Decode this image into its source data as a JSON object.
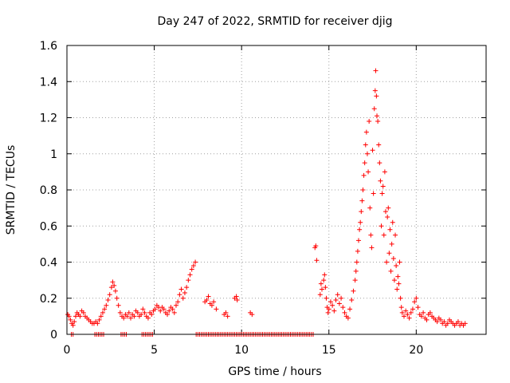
{
  "chart_data": {
    "type": "scatter",
    "title": "Day 247 of 2022, SRMTID for receiver djig",
    "xlabel": "GPS time / hours",
    "ylabel": "SRMTID / TECUs",
    "xlim": [
      0,
      24
    ],
    "ylim": [
      0,
      1.6
    ],
    "x_ticks": [
      0,
      5,
      10,
      15,
      20
    ],
    "x_tick_labels": [
      "0",
      "5",
      "10",
      "15",
      "20"
    ],
    "y_ticks": [
      0,
      0.2,
      0.4,
      0.6,
      0.8,
      1.0,
      1.2,
      1.4,
      1.6
    ],
    "y_tick_labels": [
      "0",
      "0.2",
      "0.4",
      "0.6",
      "0.8",
      "1",
      "1.2",
      "1.4",
      "1.6"
    ],
    "grid": true,
    "marker": "plus",
    "color": "#ff0000",
    "series": [
      {
        "name": "SRMTID",
        "points": [
          [
            0.05,
            0.11
          ],
          [
            0.12,
            0.1
          ],
          [
            0.2,
            0.08
          ],
          [
            0.28,
            0.06
          ],
          [
            0.35,
            0.05
          ],
          [
            0.42,
            0.07
          ],
          [
            0.5,
            0.1
          ],
          [
            0.58,
            0.12
          ],
          [
            0.66,
            0.11
          ],
          [
            0.75,
            0.1
          ],
          [
            0.85,
            0.13
          ],
          [
            0.95,
            0.12
          ],
          [
            1.05,
            0.1
          ],
          [
            1.15,
            0.09
          ],
          [
            1.25,
            0.08
          ],
          [
            1.35,
            0.07
          ],
          [
            1.45,
            0.06
          ],
          [
            1.55,
            0.06
          ],
          [
            1.65,
            0.07
          ],
          [
            1.75,
            0.06
          ],
          [
            1.85,
            0.08
          ],
          [
            1.95,
            0.1
          ],
          [
            2.05,
            0.12
          ],
          [
            2.15,
            0.14
          ],
          [
            2.25,
            0.16
          ],
          [
            2.35,
            0.19
          ],
          [
            2.45,
            0.22
          ],
          [
            2.55,
            0.26
          ],
          [
            2.62,
            0.29
          ],
          [
            2.7,
            0.27
          ],
          [
            2.78,
            0.24
          ],
          [
            2.86,
            0.2
          ],
          [
            2.95,
            0.16
          ],
          [
            3.05,
            0.12
          ],
          [
            3.15,
            0.1
          ],
          [
            3.25,
            0.09
          ],
          [
            3.35,
            0.11
          ],
          [
            3.45,
            0.1
          ],
          [
            3.55,
            0.12
          ],
          [
            3.65,
            0.09
          ],
          [
            3.75,
            0.11
          ],
          [
            3.85,
            0.1
          ],
          [
            3.95,
            0.13
          ],
          [
            4.05,
            0.12
          ],
          [
            4.15,
            0.1
          ],
          [
            4.25,
            0.11
          ],
          [
            4.35,
            0.14
          ],
          [
            4.45,
            0.12
          ],
          [
            4.55,
            0.1
          ],
          [
            4.65,
            0.09
          ],
          [
            4.75,
            0.12
          ],
          [
            4.85,
            0.11
          ],
          [
            4.95,
            0.13
          ],
          [
            5.05,
            0.14
          ],
          [
            5.15,
            0.16
          ],
          [
            5.25,
            0.15
          ],
          [
            5.35,
            0.13
          ],
          [
            5.45,
            0.15
          ],
          [
            5.55,
            0.14
          ],
          [
            5.65,
            0.12
          ],
          [
            5.75,
            0.11
          ],
          [
            5.85,
            0.13
          ],
          [
            5.95,
            0.15
          ],
          [
            6.05,
            0.14
          ],
          [
            6.15,
            0.12
          ],
          [
            6.25,
            0.16
          ],
          [
            6.35,
            0.18
          ],
          [
            6.45,
            0.22
          ],
          [
            6.55,
            0.25
          ],
          [
            6.65,
            0.2
          ],
          [
            6.75,
            0.23
          ],
          [
            6.85,
            0.26
          ],
          [
            6.95,
            0.3
          ],
          [
            7.05,
            0.33
          ],
          [
            7.15,
            0.36
          ],
          [
            7.25,
            0.38
          ],
          [
            7.35,
            0.4
          ],
          [
            7.9,
            0.18
          ],
          [
            8.0,
            0.19
          ],
          [
            8.1,
            0.21
          ],
          [
            8.2,
            0.17
          ],
          [
            8.3,
            0.16
          ],
          [
            8.4,
            0.18
          ],
          [
            8.55,
            0.14
          ],
          [
            9.0,
            0.11
          ],
          [
            9.1,
            0.12
          ],
          [
            9.2,
            0.1
          ],
          [
            9.6,
            0.2
          ],
          [
            9.7,
            0.21
          ],
          [
            9.75,
            0.19
          ],
          [
            10.5,
            0.12
          ],
          [
            10.6,
            0.11
          ],
          [
            14.2,
            0.48
          ],
          [
            14.25,
            0.49
          ],
          [
            14.3,
            0.41
          ],
          [
            14.5,
            0.22
          ],
          [
            14.55,
            0.28
          ],
          [
            14.6,
            0.25
          ],
          [
            14.7,
            0.3
          ],
          [
            14.75,
            0.33
          ],
          [
            14.8,
            0.26
          ],
          [
            14.85,
            0.2
          ],
          [
            14.9,
            0.15
          ],
          [
            14.95,
            0.12
          ],
          [
            15.0,
            0.14
          ],
          [
            15.1,
            0.18
          ],
          [
            15.2,
            0.16
          ],
          [
            15.3,
            0.13
          ],
          [
            15.4,
            0.19
          ],
          [
            15.5,
            0.22
          ],
          [
            15.6,
            0.17
          ],
          [
            15.7,
            0.2
          ],
          [
            15.8,
            0.15
          ],
          [
            15.9,
            0.12
          ],
          [
            16.0,
            0.1
          ],
          [
            16.1,
            0.09
          ],
          [
            16.2,
            0.14
          ],
          [
            16.3,
            0.19
          ],
          [
            16.4,
            0.24
          ],
          [
            16.5,
            0.3
          ],
          [
            16.55,
            0.35
          ],
          [
            16.6,
            0.4
          ],
          [
            16.65,
            0.46
          ],
          [
            16.7,
            0.52
          ],
          [
            16.75,
            0.58
          ],
          [
            16.8,
            0.62
          ],
          [
            16.85,
            0.68
          ],
          [
            16.9,
            0.74
          ],
          [
            16.95,
            0.8
          ],
          [
            17.0,
            0.88
          ],
          [
            17.05,
            0.95
          ],
          [
            17.1,
            1.05
          ],
          [
            17.15,
            1.12
          ],
          [
            17.2,
            1.0
          ],
          [
            17.25,
            0.9
          ],
          [
            17.3,
            1.18
          ],
          [
            17.35,
            0.7
          ],
          [
            17.4,
            0.55
          ],
          [
            17.45,
            0.48
          ],
          [
            17.5,
            1.02
          ],
          [
            17.55,
            0.78
          ],
          [
            17.6,
            1.25
          ],
          [
            17.65,
            1.35
          ],
          [
            17.68,
            1.46
          ],
          [
            17.72,
            1.32
          ],
          [
            17.75,
            1.21
          ],
          [
            17.8,
            1.18
          ],
          [
            17.85,
            1.05
          ],
          [
            17.9,
            0.95
          ],
          [
            17.95,
            0.85
          ],
          [
            18.0,
            0.6
          ],
          [
            18.05,
            0.78
          ],
          [
            18.1,
            0.82
          ],
          [
            18.15,
            0.55
          ],
          [
            18.2,
            0.9
          ],
          [
            18.25,
            0.68
          ],
          [
            18.3,
            0.4
          ],
          [
            18.35,
            0.65
          ],
          [
            18.4,
            0.7
          ],
          [
            18.45,
            0.45
          ],
          [
            18.5,
            0.58
          ],
          [
            18.55,
            0.35
          ],
          [
            18.6,
            0.5
          ],
          [
            18.65,
            0.62
          ],
          [
            18.7,
            0.42
          ],
          [
            18.75,
            0.3
          ],
          [
            18.8,
            0.55
          ],
          [
            18.85,
            0.38
          ],
          [
            18.9,
            0.25
          ],
          [
            18.95,
            0.32
          ],
          [
            19.0,
            0.28
          ],
          [
            19.05,
            0.4
          ],
          [
            19.1,
            0.2
          ],
          [
            19.15,
            0.15
          ],
          [
            19.2,
            0.12
          ],
          [
            19.3,
            0.1
          ],
          [
            19.4,
            0.13
          ],
          [
            19.5,
            0.11
          ],
          [
            19.6,
            0.09
          ],
          [
            19.7,
            0.12
          ],
          [
            19.8,
            0.14
          ],
          [
            19.9,
            0.18
          ],
          [
            20.0,
            0.2
          ],
          [
            20.1,
            0.15
          ],
          [
            20.2,
            0.11
          ],
          [
            20.3,
            0.1
          ],
          [
            20.4,
            0.12
          ],
          [
            20.5,
            0.09
          ],
          [
            20.6,
            0.08
          ],
          [
            20.7,
            0.11
          ],
          [
            20.8,
            0.12
          ],
          [
            20.9,
            0.1
          ],
          [
            21.0,
            0.09
          ],
          [
            21.1,
            0.08
          ],
          [
            21.2,
            0.07
          ],
          [
            21.3,
            0.09
          ],
          [
            21.4,
            0.08
          ],
          [
            21.5,
            0.06
          ],
          [
            21.6,
            0.07
          ],
          [
            21.7,
            0.05
          ],
          [
            21.8,
            0.06
          ],
          [
            21.9,
            0.08
          ],
          [
            22.0,
            0.07
          ],
          [
            22.1,
            0.06
          ],
          [
            22.2,
            0.05
          ],
          [
            22.3,
            0.06
          ],
          [
            22.4,
            0.07
          ],
          [
            22.5,
            0.05
          ],
          [
            22.6,
            0.06
          ],
          [
            22.7,
            0.05
          ],
          [
            22.8,
            0.06
          ]
        ],
        "zero_runs": [
          [
            1.6,
            2.1
          ],
          [
            3.1,
            3.4
          ],
          [
            4.3,
            4.9
          ],
          [
            7.4,
            14.1
          ]
        ],
        "zero_isolated": [
          0.25,
          0.35
        ]
      }
    ]
  }
}
